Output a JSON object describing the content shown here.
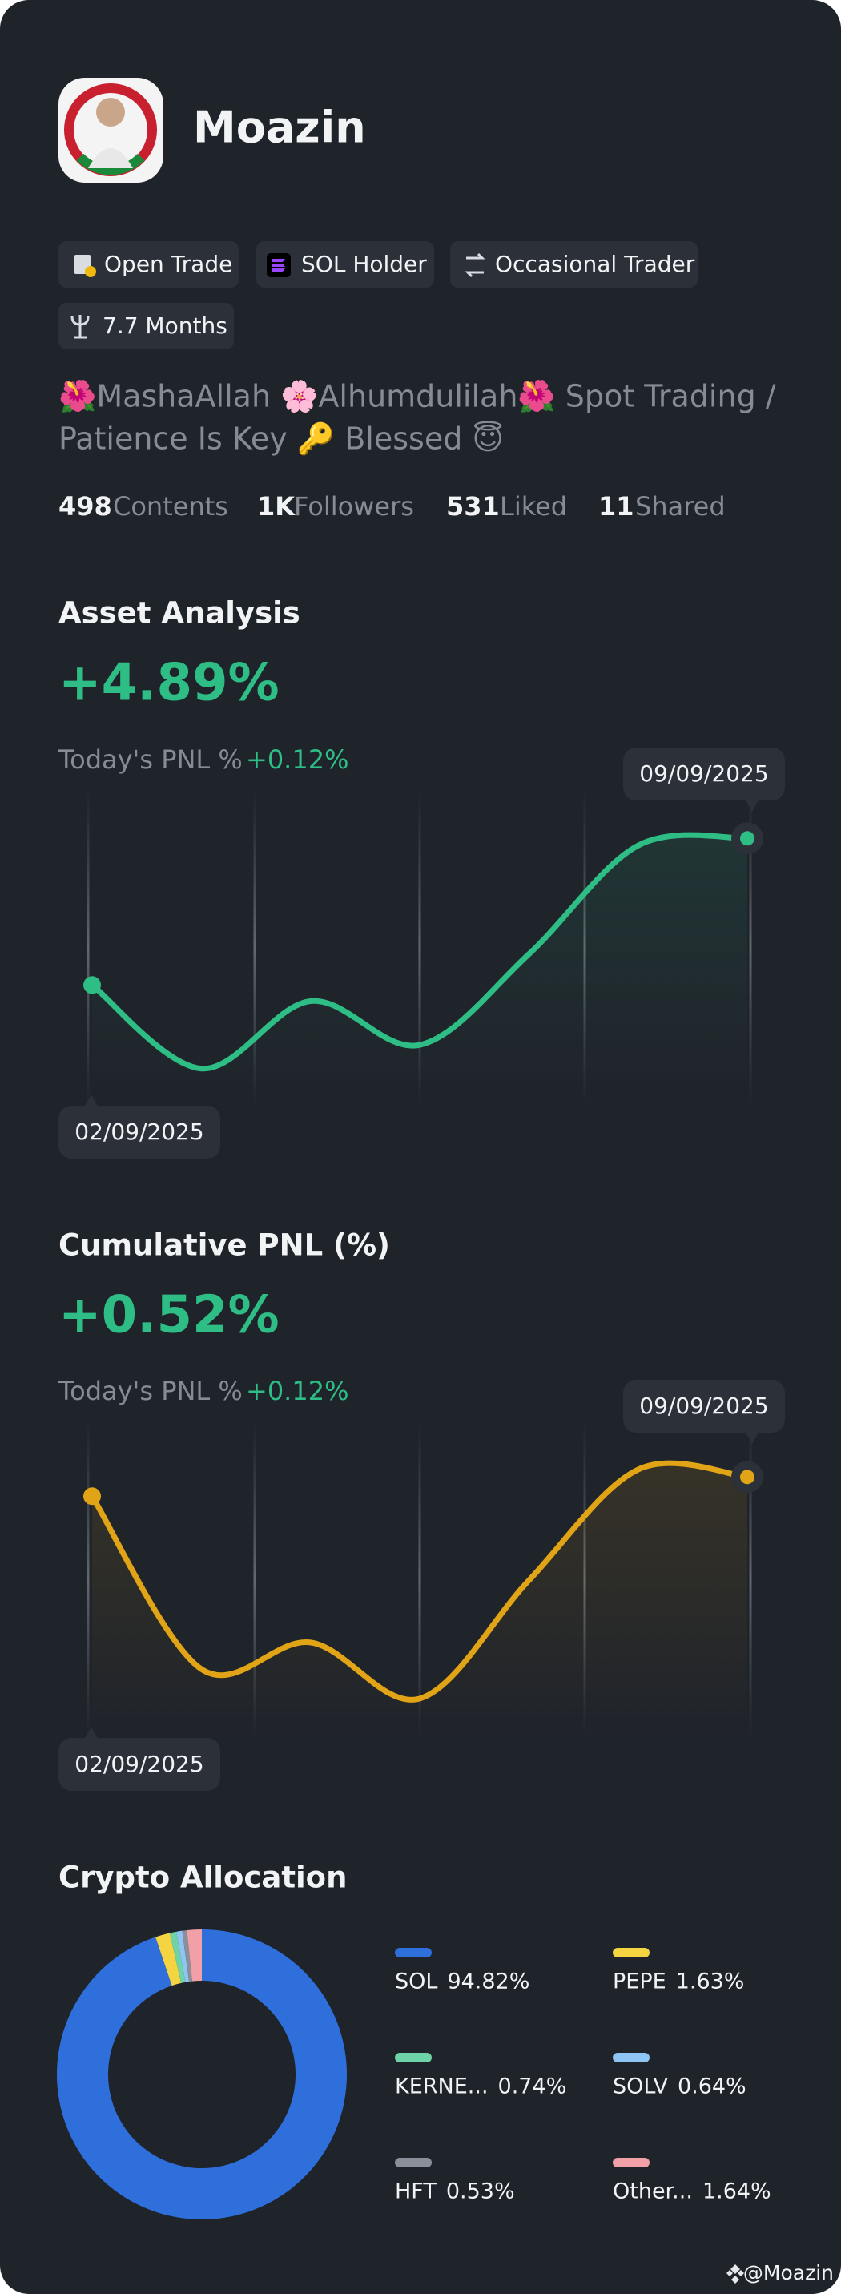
{
  "profile": {
    "name": "Moazin",
    "tags": [
      "Open Trade",
      "SOL Holder",
      "Occasional Trader",
      "7.7 Months"
    ],
    "bio_lines": [
      "🌺MashaAllah 🌸Alhumdulilah🌺 Spot Trading /",
      "Patience Is Key 🔑  Blessed 😇"
    ],
    "stats": [
      {
        "value": "498",
        "label": "Contents"
      },
      {
        "value": "1K",
        "label": "Followers"
      },
      {
        "value": "531",
        "label": "Liked"
      },
      {
        "value": "11",
        "label": "Shared"
      }
    ]
  },
  "asset_analysis": {
    "title": "Asset Analysis",
    "value": "+4.89%",
    "today_label": "Today's PNL %",
    "today_value": "+0.12%",
    "chart": {
      "type": "line",
      "categories": [
        "02/09/2025",
        null,
        null,
        null,
        null,
        null,
        "09/09/2025"
      ],
      "values": [
        0,
        -2.79,
        -0.54,
        -2.0,
        1.03,
        4.65,
        4.89
      ],
      "ylim": [
        -4,
        6.5
      ],
      "color": "#2ebd85"
    }
  },
  "cumulative_pnl": {
    "title": "Cumulative PNL (%)",
    "value": "+0.52%",
    "today_label": "Today's PNL %",
    "today_value": "+0.12%",
    "chart": {
      "type": "line",
      "categories": [
        "02/09/2025",
        null,
        null,
        null,
        null,
        null,
        "09/09/2025"
      ],
      "values": [
        0,
        -4.68,
        -3.96,
        -5.48,
        -2.28,
        0.72,
        0.52
      ],
      "ylim": [
        -6.5,
        2
      ],
      "color": "#e0a416"
    }
  },
  "crypto_allocation": {
    "title": "Crypto Allocation",
    "chart": {
      "type": "donut",
      "categories": [
        "SOL",
        "PEPE",
        "KERNE...",
        "SOLV",
        "HFT",
        "Other..."
      ],
      "values": [
        94.82,
        1.63,
        0.74,
        0.64,
        0.53,
        1.64
      ],
      "value_labels": [
        "94.82%",
        "1.63%",
        "0.74%",
        "0.64%",
        "0.53%",
        "1.64%"
      ],
      "colors": [
        "#2f6fdb",
        "#f5d442",
        "#6fd3a8",
        "#8ec5f5",
        "#8a8f99",
        "#f2a0a8"
      ]
    }
  },
  "watermark": "@Moazin"
}
